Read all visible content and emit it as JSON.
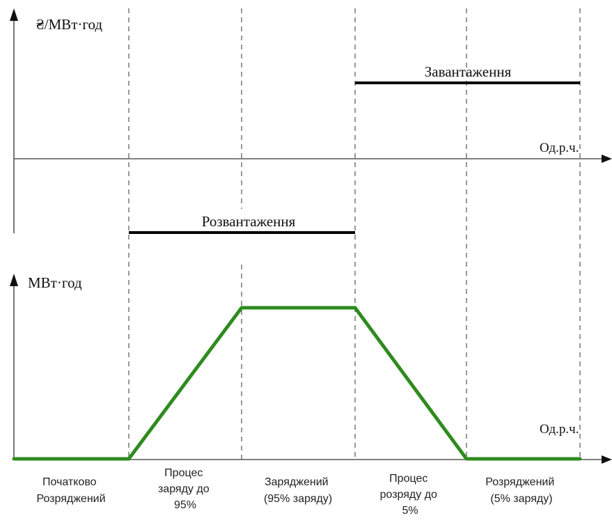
{
  "top_chart": {
    "y_axis_label": "₴/МВт·год",
    "x_axis_label": "Од.р.ч.",
    "charging_label": "Завантаження",
    "discharging_label": "Розвантаження"
  },
  "bottom_chart": {
    "y_axis_label": "МВт·год",
    "x_axis_label": "Од.р.ч.",
    "curve_color": "#2e8b1e"
  },
  "phases": [
    [
      "Початково",
      "Розряджений"
    ],
    [
      "Процес",
      "заряду до",
      "95%"
    ],
    [
      "Заряджений",
      "(95% заряду)"
    ],
    [
      "Процес",
      "розряду до",
      "5%"
    ],
    [
      "Розряджений",
      "(5% заряду)"
    ]
  ]
}
